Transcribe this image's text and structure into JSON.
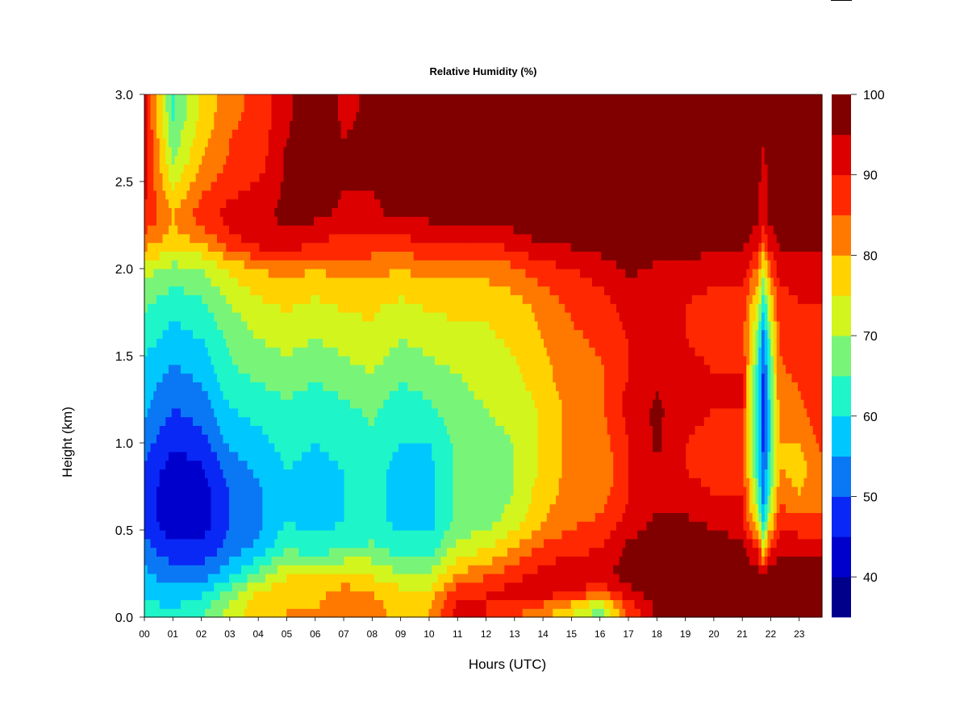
{
  "chart_data": {
    "type": "heatmap",
    "title": "Relative Humidity (%)",
    "xlabel": "Hours (UTC)",
    "ylabel": "Height (km)",
    "xlim": [
      0,
      23.8
    ],
    "ylim": [
      0,
      3.0
    ],
    "x_ticks": [
      {
        "value": 0,
        "label": "00"
      },
      {
        "value": 1,
        "label": "01"
      },
      {
        "value": 2,
        "label": "02"
      },
      {
        "value": 3,
        "label": "03"
      },
      {
        "value": 4,
        "label": "04"
      },
      {
        "value": 5,
        "label": "05"
      },
      {
        "value": 6,
        "label": "06"
      },
      {
        "value": 7,
        "label": "07"
      },
      {
        "value": 8,
        "label": "08"
      },
      {
        "value": 9,
        "label": "09"
      },
      {
        "value": 10,
        "label": "10"
      },
      {
        "value": 11,
        "label": "11"
      },
      {
        "value": 12,
        "label": "12"
      },
      {
        "value": 13,
        "label": "13"
      },
      {
        "value": 14,
        "label": "14"
      },
      {
        "value": 15,
        "label": "15"
      },
      {
        "value": 16,
        "label": "16"
      },
      {
        "value": 17,
        "label": "17"
      },
      {
        "value": 18,
        "label": "18"
      },
      {
        "value": 19,
        "label": "19"
      },
      {
        "value": 20,
        "label": "20"
      },
      {
        "value": 21,
        "label": "21"
      },
      {
        "value": 22,
        "label": "22"
      },
      {
        "value": 23,
        "label": "23"
      }
    ],
    "y_ticks": [
      {
        "value": 0.0,
        "label": "0.0"
      },
      {
        "value": 0.5,
        "label": "0.5"
      },
      {
        "value": 1.0,
        "label": "1.0"
      },
      {
        "value": 1.5,
        "label": "1.5"
      },
      {
        "value": 2.0,
        "label": "2.0"
      },
      {
        "value": 2.5,
        "label": "2.5"
      },
      {
        "value": 3.0,
        "label": "3.0"
      }
    ],
    "colorbar": {
      "min": 35,
      "max": 100,
      "ticks": [
        {
          "value": 40,
          "label": "40"
        },
        {
          "value": 50,
          "label": "50"
        },
        {
          "value": 60,
          "label": "60"
        },
        {
          "value": 70,
          "label": "70"
        },
        {
          "value": 80,
          "label": "80"
        },
        {
          "value": 90,
          "label": "90"
        },
        {
          "value": 100,
          "label": "100"
        }
      ],
      "levels": [
        {
          "from": 35,
          "to": 40,
          "color": "#00008b"
        },
        {
          "from": 40,
          "to": 45,
          "color": "#0000cd"
        },
        {
          "from": 45,
          "to": 50,
          "color": "#0a28f5"
        },
        {
          "from": 50,
          "to": 55,
          "color": "#0a78f5"
        },
        {
          "from": 55,
          "to": 60,
          "color": "#00c8ff"
        },
        {
          "from": 60,
          "to": 65,
          "color": "#1ef5c8"
        },
        {
          "from": 65,
          "to": 70,
          "color": "#78f578"
        },
        {
          "from": 70,
          "to": 75,
          "color": "#d2f51e"
        },
        {
          "from": 75,
          "to": 80,
          "color": "#ffd200"
        },
        {
          "from": 80,
          "to": 85,
          "color": "#ff7800"
        },
        {
          "from": 85,
          "to": 90,
          "color": "#ff2800"
        },
        {
          "from": 90,
          "to": 95,
          "color": "#dc0000"
        },
        {
          "from": 95,
          "to": 100,
          "color": "#800000"
        }
      ]
    },
    "field": {
      "x_unit": "hours UTC",
      "y_unit": "km",
      "y_levels": [
        0.05,
        0.15,
        0.25,
        0.4,
        0.55,
        0.7,
        0.85,
        1.0,
        1.2,
        1.4,
        1.6,
        1.8,
        2.0,
        2.15,
        2.3,
        2.6,
        2.9
      ],
      "profiles": [
        {
          "x": 0.0,
          "rh": [
            62,
            58,
            56,
            52,
            48,
            48,
            50,
            52,
            56,
            58,
            62,
            66,
            72,
            82,
            90,
            92,
            92
          ]
        },
        {
          "x": 1.0,
          "rh": [
            60,
            56,
            52,
            46,
            40,
            40,
            42,
            46,
            50,
            54,
            58,
            62,
            68,
            78,
            80,
            70,
            64
          ]
        },
        {
          "x": 2.0,
          "rh": [
            64,
            58,
            52,
            46,
            42,
            42,
            44,
            48,
            52,
            56,
            60,
            64,
            70,
            80,
            88,
            80,
            76
          ]
        },
        {
          "x": 3.0,
          "rh": [
            72,
            66,
            58,
            52,
            50,
            50,
            52,
            56,
            60,
            64,
            66,
            70,
            76,
            88,
            92,
            86,
            84
          ]
        },
        {
          "x": 4.0,
          "rh": [
            78,
            76,
            66,
            56,
            54,
            54,
            56,
            58,
            62,
            66,
            70,
            74,
            80,
            92,
            94,
            88,
            86
          ]
        },
        {
          "x": 5.0,
          "rh": [
            80,
            78,
            74,
            64,
            60,
            60,
            60,
            62,
            64,
            68,
            72,
            76,
            82,
            94,
            96,
            96,
            94
          ]
        },
        {
          "x": 6.0,
          "rh": [
            80,
            78,
            74,
            62,
            58,
            58,
            58,
            60,
            62,
            66,
            70,
            74,
            80,
            90,
            96,
            98,
            98
          ]
        },
        {
          "x": 7.0,
          "rh": [
            84,
            82,
            76,
            64,
            60,
            60,
            60,
            62,
            64,
            68,
            72,
            76,
            82,
            88,
            94,
            96,
            94
          ]
        },
        {
          "x": 8.0,
          "rh": [
            82,
            80,
            74,
            66,
            62,
            62,
            62,
            64,
            66,
            70,
            74,
            76,
            82,
            88,
            94,
            96,
            96
          ]
        },
        {
          "x": 9.0,
          "rh": [
            78,
            76,
            70,
            62,
            58,
            58,
            58,
            60,
            62,
            66,
            70,
            74,
            80,
            88,
            96,
            98,
            98
          ]
        },
        {
          "x": 10.0,
          "rh": [
            80,
            76,
            70,
            62,
            58,
            58,
            58,
            60,
            64,
            68,
            72,
            76,
            82,
            90,
            96,
            98,
            98
          ]
        },
        {
          "x": 11.0,
          "rh": [
            92,
            88,
            80,
            72,
            66,
            66,
            66,
            66,
            68,
            70,
            74,
            76,
            82,
            90,
            96,
            98,
            98
          ]
        },
        {
          "x": 12.0,
          "rh": [
            90,
            90,
            84,
            74,
            68,
            68,
            68,
            68,
            70,
            72,
            74,
            76,
            82,
            90,
            96,
            96,
            98
          ]
        },
        {
          "x": 13.0,
          "rh": [
            86,
            92,
            88,
            80,
            72,
            70,
            70,
            70,
            72,
            74,
            76,
            78,
            84,
            92,
            98,
            98,
            98
          ]
        },
        {
          "x": 14.0,
          "rh": [
            82,
            94,
            92,
            86,
            80,
            78,
            76,
            76,
            76,
            78,
            80,
            82,
            88,
            96,
            98,
            98,
            98
          ]
        },
        {
          "x": 15.0,
          "rh": [
            76,
            92,
            94,
            88,
            84,
            82,
            82,
            82,
            82,
            84,
            84,
            86,
            90,
            96,
            98,
            98,
            98
          ]
        },
        {
          "x": 16.0,
          "rh": [
            68,
            86,
            94,
            90,
            86,
            82,
            80,
            82,
            84,
            84,
            86,
            88,
            92,
            98,
            98,
            98,
            98
          ]
        },
        {
          "x": 17.0,
          "rh": [
            86,
            94,
            97,
            96,
            92,
            90,
            90,
            90,
            92,
            90,
            90,
            92,
            96,
            98,
            98,
            98,
            98
          ]
        },
        {
          "x": 18.0,
          "rh": [
            96,
            98,
            98,
            98,
            96,
            94,
            94,
            96,
            96,
            94,
            92,
            92,
            94,
            98,
            98,
            98,
            98
          ]
        },
        {
          "x": 19.0,
          "rh": [
            97,
            98,
            98,
            98,
            96,
            92,
            90,
            90,
            92,
            92,
            90,
            90,
            94,
            98,
            98,
            98,
            98
          ]
        },
        {
          "x": 20.0,
          "rh": [
            98,
            98,
            98,
            98,
            94,
            90,
            88,
            88,
            90,
            90,
            88,
            88,
            92,
            96,
            98,
            98,
            98
          ]
        },
        {
          "x": 21.0,
          "rh": [
            98,
            98,
            98,
            96,
            92,
            90,
            88,
            88,
            90,
            90,
            88,
            88,
            92,
            96,
            98,
            98,
            98
          ]
        },
        {
          "x": 21.55,
          "rh": [
            98,
            98,
            98,
            88,
            74,
            66,
            62,
            60,
            60,
            62,
            66,
            74,
            84,
            92,
            96,
            96,
            98
          ]
        },
        {
          "x": 21.75,
          "rh": [
            98,
            98,
            94,
            74,
            58,
            52,
            50,
            48,
            46,
            48,
            52,
            60,
            72,
            86,
            92,
            94,
            96
          ]
        },
        {
          "x": 21.95,
          "rh": [
            98,
            98,
            98,
            88,
            74,
            66,
            62,
            60,
            60,
            62,
            66,
            74,
            84,
            92,
            96,
            96,
            98
          ]
        },
        {
          "x": 22.3,
          "rh": [
            98,
            98,
            98,
            94,
            88,
            84,
            80,
            80,
            82,
            84,
            86,
            88,
            92,
            96,
            98,
            98,
            98
          ]
        },
        {
          "x": 23.0,
          "rh": [
            98,
            98,
            98,
            94,
            86,
            80,
            78,
            80,
            84,
            86,
            88,
            90,
            92,
            96,
            98,
            98,
            98
          ]
        },
        {
          "x": 23.8,
          "rh": [
            98,
            98,
            98,
            92,
            86,
            84,
            84,
            86,
            88,
            88,
            88,
            90,
            92,
            96,
            98,
            98,
            98
          ]
        }
      ]
    }
  }
}
